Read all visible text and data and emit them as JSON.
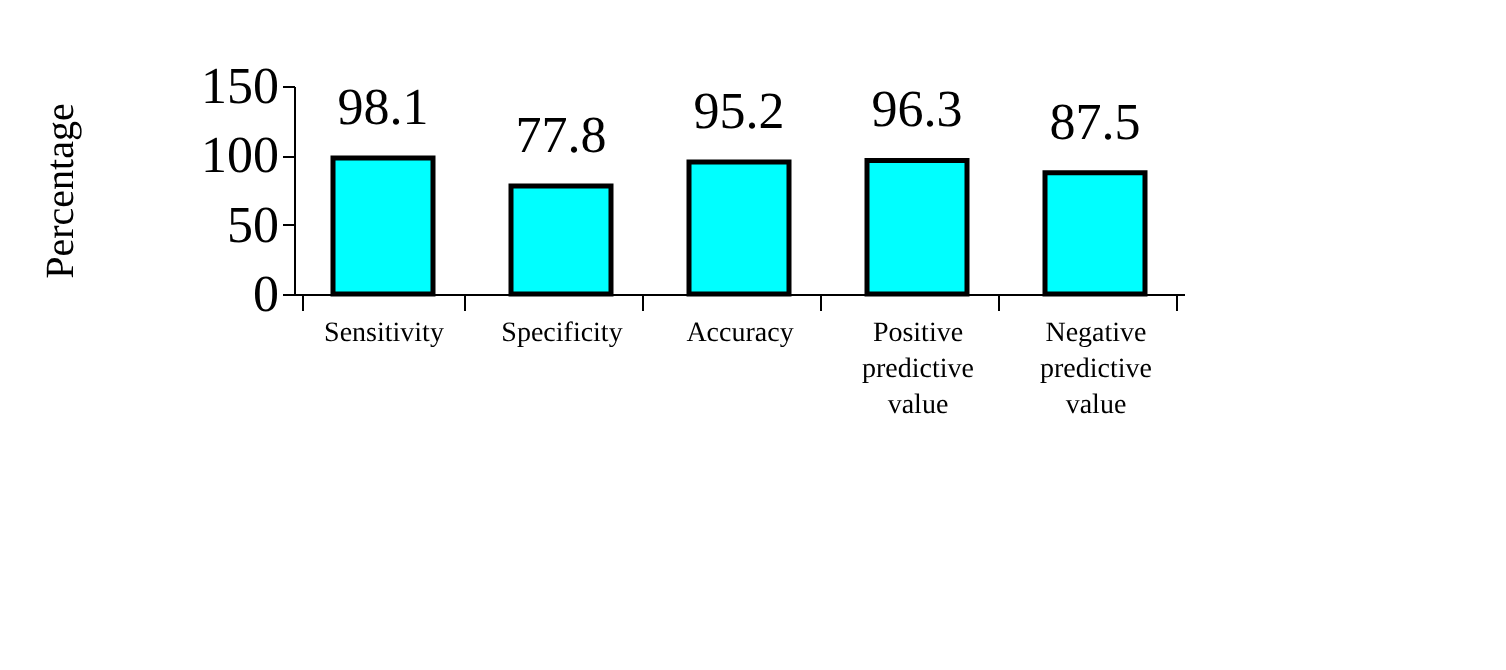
{
  "chart_data": {
    "type": "bar",
    "ylabel": "Percentage",
    "categories": [
      "Sensitivity",
      "Specificity",
      "Accuracy",
      "Positive predictive value",
      "Negative predictive value"
    ],
    "values": [
      98.1,
      77.8,
      95.2,
      96.3,
      87.5
    ],
    "color": "#00ffff",
    "ylim": [
      0,
      150
    ],
    "yticks": [
      0,
      50,
      100,
      150
    ],
    "grid": false,
    "data_labels": true
  }
}
